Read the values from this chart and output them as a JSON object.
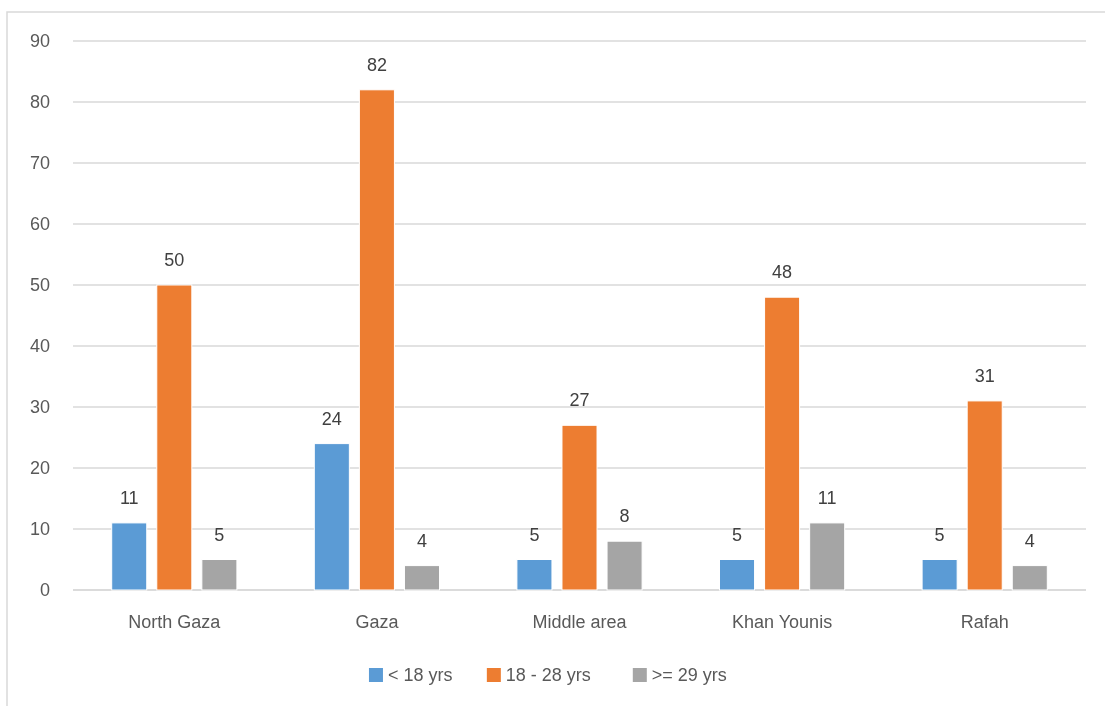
{
  "chart_data": {
    "type": "bar",
    "categories": [
      "North Gaza",
      "Gaza",
      "Middle area",
      "Khan Younis",
      "Rafah"
    ],
    "series": [
      {
        "name": "< 18 yrs",
        "color": "#5b9bd5",
        "values": [
          11,
          24,
          5,
          5,
          5
        ]
      },
      {
        "name": "18 - 28 yrs",
        "color": "#ed7d31",
        "values": [
          50,
          82,
          27,
          48,
          31
        ]
      },
      {
        "name": ">= 29 yrs",
        "color": "#a5a5a5",
        "values": [
          5,
          4,
          8,
          11,
          4
        ]
      }
    ],
    "ylim": [
      0,
      90
    ],
    "yticks": [
      0,
      10,
      20,
      30,
      40,
      50,
      60,
      70,
      80,
      90
    ],
    "grid": "y",
    "data_labels": true,
    "legend": "bottom"
  }
}
